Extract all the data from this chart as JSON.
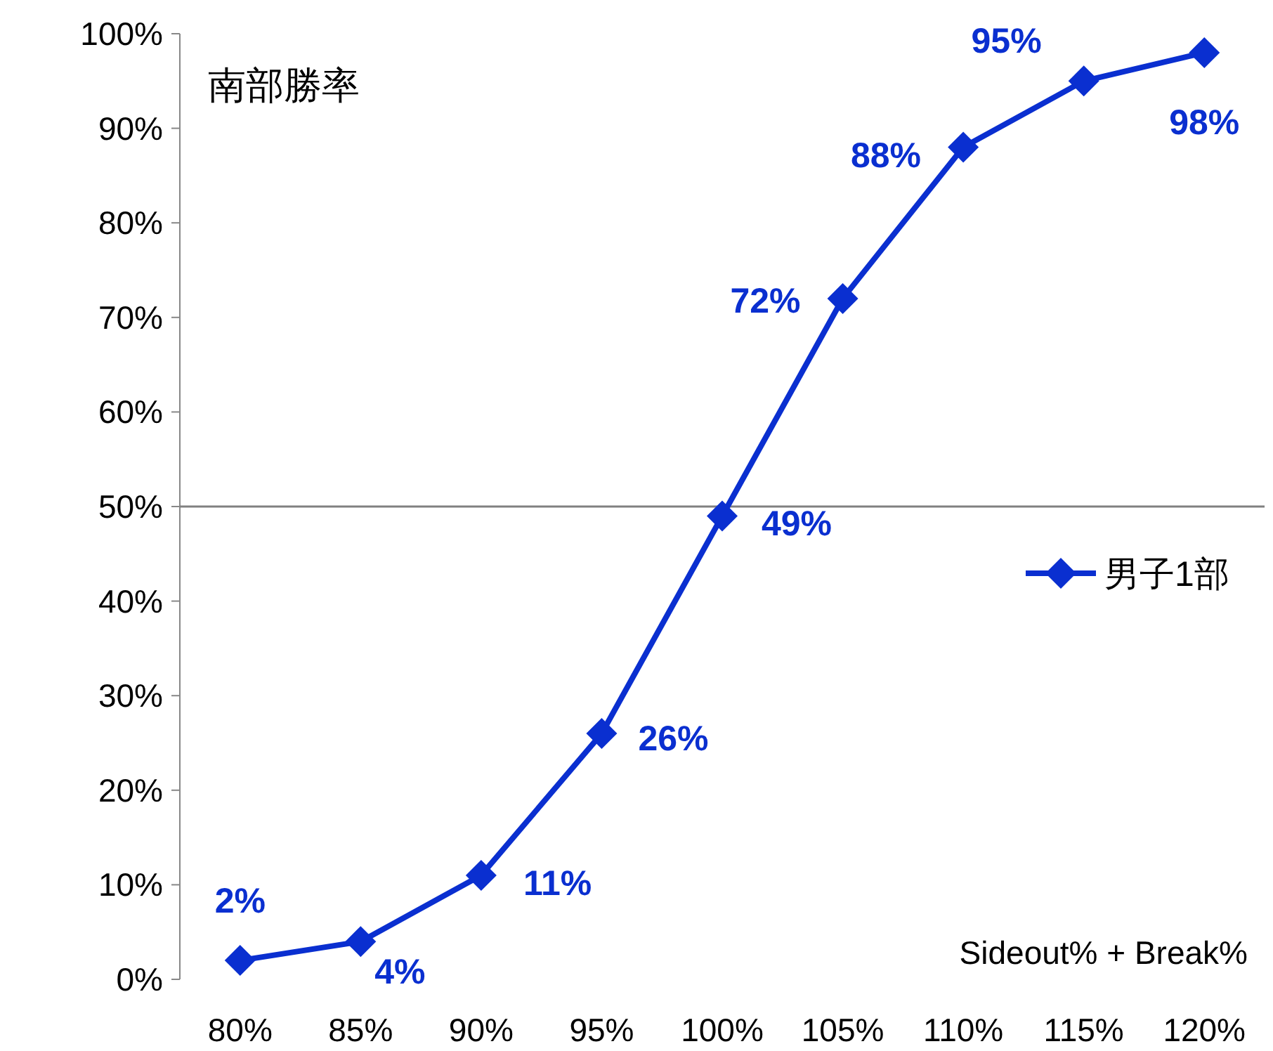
{
  "chart_data": {
    "type": "line",
    "title": "南部勝率",
    "xlabel": "Sideout% + Break%",
    "categories": [
      "80%",
      "85%",
      "90%",
      "95%",
      "100%",
      "105%",
      "110%",
      "115%",
      "120%"
    ],
    "series": [
      {
        "name": "男子1部",
        "color": "#0a2fd0",
        "values": [
          2,
          4,
          11,
          26,
          49,
          72,
          88,
          95,
          98
        ],
        "value_labels": [
          "2%",
          "4%",
          "11%",
          "26%",
          "49%",
          "72%",
          "88%",
          "95%",
          "98%"
        ]
      }
    ],
    "ylim": [
      0,
      100
    ],
    "yticks": [
      {
        "value": 0,
        "label": "0%"
      },
      {
        "value": 10,
        "label": "10%"
      },
      {
        "value": 20,
        "label": "20%"
      },
      {
        "value": 30,
        "label": "30%"
      },
      {
        "value": 40,
        "label": "40%"
      },
      {
        "value": 50,
        "label": "50%"
      },
      {
        "value": 60,
        "label": "60%"
      },
      {
        "value": 70,
        "label": "70%"
      },
      {
        "value": 80,
        "label": "80%"
      },
      {
        "value": 90,
        "label": "90%"
      },
      {
        "value": 100,
        "label": "100%"
      }
    ],
    "ref_lines": [
      {
        "axis": "y",
        "value": 50,
        "label": null,
        "color": "#808080"
      }
    ],
    "marker": "diamond",
    "line_style": "solid",
    "legend": "right",
    "grid": false
  }
}
